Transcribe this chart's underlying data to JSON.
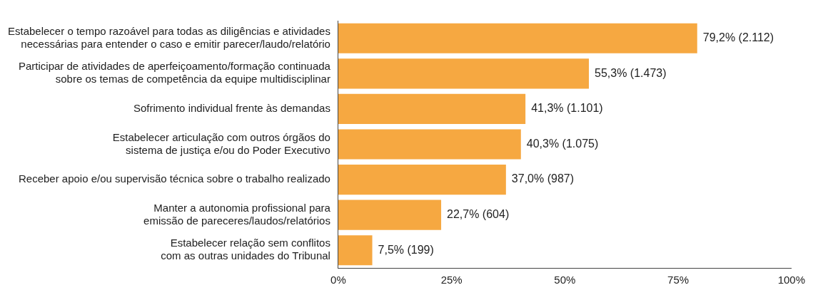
{
  "chart_data": {
    "type": "bar",
    "orientation": "horizontal",
    "categories": [
      "Estabelecer o tempo razoável para todas as diligências e atividades\nnecessárias para entender o caso e emitir parecer/laudo/relatório",
      "Participar de atividades de aperfeiçoamento/formação continuada\nsobre os temas de competência da equipe multidisciplinar",
      "Sofrimento individual frente às demandas",
      "Estabelecer articulação com outros órgãos do\nsistema de justiça e/ou do Poder Executivo",
      "Receber apoio e/ou supervisão técnica sobre o trabalho realizado",
      "Manter a autonomia profissional para\nemissão de pareceres/laudos/relatórios",
      "Estabelecer relação sem conflitos\ncom as outras unidades do Tribunal"
    ],
    "values": [
      79.2,
      55.3,
      41.3,
      40.3,
      37.0,
      22.7,
      7.5
    ],
    "value_labels": [
      "79,2% (2.112)",
      "55,3% (1.473)",
      "41,3% (1.101)",
      "40,3% (1.075)",
      "37,0% (987)",
      "22,7% (604)",
      "7,5% (199)"
    ],
    "color": "#f6a841",
    "xlim": [
      0,
      100
    ],
    "xticks": [
      {
        "value": 0,
        "label": "0%"
      },
      {
        "value": 25,
        "label": "25%"
      },
      {
        "value": 50,
        "label": "50%"
      },
      {
        "value": 75,
        "label": "75%"
      },
      {
        "value": 100,
        "label": "100%"
      }
    ]
  }
}
